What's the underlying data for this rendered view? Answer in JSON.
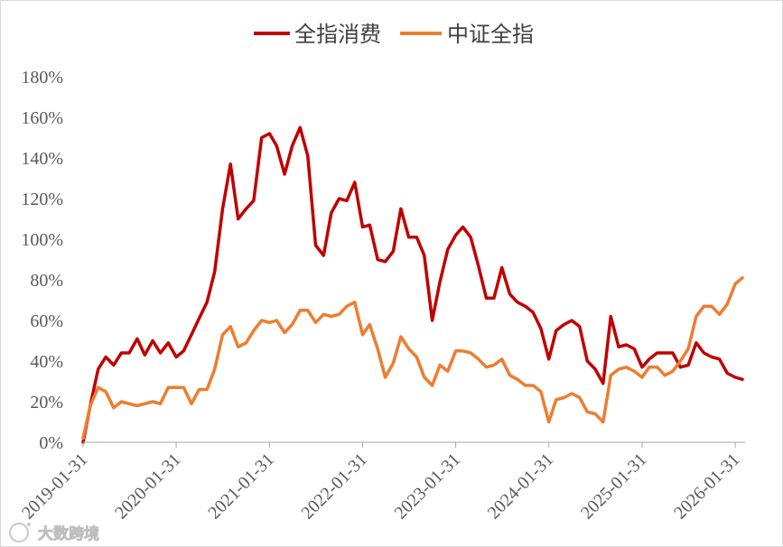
{
  "chart_data": {
    "type": "line",
    "title": "",
    "xlabel": "",
    "ylabel": "",
    "legend": "top-center",
    "grid": false,
    "xlim": [
      "2019-01-31",
      "2026-02-28"
    ],
    "ylim": [
      0,
      180
    ],
    "yticks": [
      0,
      20,
      40,
      60,
      80,
      100,
      120,
      140,
      160,
      180
    ],
    "ytick_labels": [
      "0%",
      "20%",
      "40%",
      "60%",
      "80%",
      "100%",
      "120%",
      "140%",
      "160%",
      "180%"
    ],
    "xticks": [
      "2019-01-31",
      "2020-01-31",
      "2021-01-31",
      "2022-01-31",
      "2023-01-31",
      "2024-01-31",
      "2025-01-31",
      "2026-01-31"
    ],
    "x": [
      "2019-01-31",
      "2019-02-28",
      "2019-03-31",
      "2019-04-30",
      "2019-05-31",
      "2019-06-30",
      "2019-07-31",
      "2019-08-31",
      "2019-09-30",
      "2019-10-31",
      "2019-11-30",
      "2019-12-31",
      "2020-01-31",
      "2020-02-29",
      "2020-03-31",
      "2020-04-30",
      "2020-05-31",
      "2020-06-30",
      "2020-07-31",
      "2020-08-31",
      "2020-09-30",
      "2020-10-31",
      "2020-11-30",
      "2020-12-31",
      "2021-01-31",
      "2021-02-28",
      "2021-03-31",
      "2021-04-30",
      "2021-05-31",
      "2021-06-30",
      "2021-07-31",
      "2021-08-31",
      "2021-09-30",
      "2021-10-31",
      "2021-11-30",
      "2021-12-31",
      "2022-01-31",
      "2022-02-28",
      "2022-03-31",
      "2022-04-30",
      "2022-05-31",
      "2022-06-30",
      "2022-07-31",
      "2022-08-31",
      "2022-09-30",
      "2022-10-31",
      "2022-11-30",
      "2022-12-31",
      "2023-01-31",
      "2023-02-28",
      "2023-03-31",
      "2023-04-30",
      "2023-05-31",
      "2023-06-30",
      "2023-07-31",
      "2023-08-31",
      "2023-09-30",
      "2023-10-31",
      "2023-11-30",
      "2023-12-31",
      "2024-01-31",
      "2024-02-29",
      "2024-03-31",
      "2024-04-30",
      "2024-05-31",
      "2024-06-30",
      "2024-07-31",
      "2024-08-31",
      "2024-09-30",
      "2024-10-31",
      "2024-11-30",
      "2024-12-31",
      "2025-01-31",
      "2025-02-28",
      "2025-03-31",
      "2025-04-30",
      "2025-05-31",
      "2025-06-30",
      "2025-07-31",
      "2025-08-31",
      "2025-09-30",
      "2025-10-31",
      "2025-11-30",
      "2025-12-31",
      "2026-01-31",
      "2026-02-28"
    ],
    "series": [
      {
        "name": "全指消费",
        "color": "#C00000",
        "values": [
          0,
          18,
          36,
          42,
          38,
          44,
          44,
          51,
          43,
          50,
          44,
          49,
          42,
          45,
          53,
          61,
          69,
          84,
          115,
          137,
          110,
          115,
          119,
          150,
          152,
          146,
          132,
          146,
          155,
          141,
          97,
          92,
          113,
          120,
          119,
          128,
          106,
          107,
          90,
          89,
          94,
          115,
          101,
          101,
          92,
          60,
          79,
          95,
          102,
          106,
          101,
          87,
          71,
          71,
          86,
          73,
          69,
          67,
          64,
          56,
          41,
          55,
          58,
          60,
          57,
          40,
          36,
          29,
          62,
          47,
          48,
          46,
          37,
          41,
          44,
          44,
          44,
          37,
          38,
          49,
          44,
          42,
          41,
          34,
          32,
          31
        ]
      },
      {
        "name": "中证全指",
        "color": "#ED7D31",
        "values": [
          2,
          18,
          27,
          25,
          17,
          20,
          19,
          18,
          19,
          20,
          19,
          27,
          27,
          27,
          19,
          26,
          26,
          36,
          53,
          57,
          47,
          49,
          55,
          60,
          59,
          60,
          54,
          58,
          65,
          65,
          59,
          63,
          62,
          63,
          67,
          69,
          53,
          58,
          46,
          32,
          39,
          52,
          46,
          42,
          32,
          28,
          38,
          35,
          45,
          45,
          44,
          41,
          37,
          38,
          41,
          33,
          31,
          28,
          28,
          25,
          10,
          21,
          22,
          24,
          22,
          15,
          14,
          10,
          33,
          36,
          37,
          35,
          32,
          37,
          37,
          33,
          35,
          40,
          46,
          62,
          67,
          67,
          63,
          68,
          78,
          81
        ]
      }
    ]
  },
  "watermark": {
    "text": "大数跨境",
    "icon": "brand-logo-icon"
  }
}
